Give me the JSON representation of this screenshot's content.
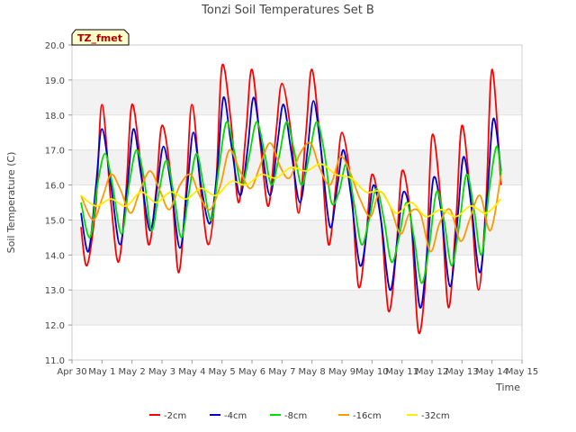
{
  "chart_data": {
    "type": "line",
    "title": "Tonzi Soil Temperatures Set B",
    "xlabel": "Time",
    "ylabel": "Soil Temperature (C)",
    "ylim": [
      11.0,
      20.0
    ],
    "xlim": [
      0,
      15
    ],
    "x_tick_labels": [
      "Apr 30",
      "May 1",
      "May 2",
      "May 3",
      "May 4",
      "May 5",
      "May 6",
      "May 7",
      "May 8",
      "May 9",
      "May 10",
      "May 11",
      "May 12",
      "May 13",
      "May 14",
      "May 15"
    ],
    "y_tick_labels": [
      "11.0",
      "12.0",
      "13.0",
      "14.0",
      "15.0",
      "16.0",
      "17.0",
      "18.0",
      "19.0",
      "20.0"
    ],
    "annotation": "TZ_fmet",
    "grid": "horizontal bands",
    "legend_position": "bottom",
    "x_unit": "days since Apr 30",
    "series": [
      {
        "name": "-2cm",
        "color": "#ff0000",
        "x": [
          0.3,
          0.5,
          0.8,
          1.0,
          1.3,
          1.55,
          1.8,
          2.0,
          2.3,
          2.55,
          2.8,
          3.0,
          3.3,
          3.55,
          3.8,
          4.0,
          4.3,
          4.55,
          4.8,
          5.0,
          5.3,
          5.55,
          5.8,
          6.0,
          6.3,
          6.55,
          6.8,
          7.0,
          7.3,
          7.55,
          7.8,
          8.0,
          8.3,
          8.55,
          8.8,
          9.0,
          9.3,
          9.55,
          9.8,
          10.0,
          10.3,
          10.55,
          10.8,
          11.0,
          11.3,
          11.55,
          11.8,
          12.0,
          12.3,
          12.55,
          12.8,
          13.0,
          13.3,
          13.55,
          13.8,
          14.0,
          14.3
        ],
        "y": [
          14.8,
          13.7,
          15.5,
          18.3,
          15.5,
          13.8,
          15.8,
          18.3,
          16.5,
          14.3,
          15.8,
          17.7,
          16.2,
          13.5,
          15.8,
          18.3,
          15.8,
          14.3,
          16.0,
          19.4,
          17.8,
          15.5,
          17.5,
          19.3,
          17.0,
          15.4,
          17.5,
          18.9,
          17.5,
          15.2,
          17.5,
          19.3,
          17.0,
          14.3,
          16.0,
          17.5,
          16.0,
          13.1,
          14.5,
          16.3,
          15.0,
          12.4,
          14.0,
          16.4,
          15.0,
          11.8,
          13.5,
          17.4,
          15.5,
          12.5,
          15.0,
          17.7,
          15.5,
          13.0,
          15.5,
          19.3,
          16.0
        ]
      },
      {
        "name": "-4cm",
        "color": "#0000cc",
        "x": [
          0.3,
          0.55,
          0.8,
          1.0,
          1.3,
          1.6,
          1.85,
          2.05,
          2.3,
          2.6,
          2.85,
          3.05,
          3.3,
          3.6,
          3.85,
          4.05,
          4.3,
          4.6,
          4.85,
          5.05,
          5.3,
          5.6,
          5.85,
          6.05,
          6.3,
          6.6,
          6.85,
          7.05,
          7.3,
          7.6,
          7.85,
          8.05,
          8.3,
          8.6,
          8.85,
          9.05,
          9.3,
          9.6,
          9.85,
          10.05,
          10.3,
          10.6,
          10.85,
          11.05,
          11.3,
          11.6,
          11.85,
          12.05,
          12.3,
          12.6,
          12.85,
          13.05,
          13.3,
          13.6,
          13.85,
          14.05,
          14.3
        ],
        "y": [
          15.2,
          14.1,
          16.0,
          17.6,
          16.0,
          14.3,
          16.0,
          17.6,
          16.3,
          14.7,
          16.0,
          17.1,
          16.0,
          14.2,
          16.0,
          17.5,
          16.0,
          14.9,
          16.5,
          18.5,
          17.2,
          15.7,
          17.0,
          18.5,
          17.2,
          15.7,
          17.2,
          18.3,
          17.0,
          15.5,
          17.0,
          18.4,
          17.0,
          14.8,
          16.0,
          17.0,
          15.7,
          13.7,
          14.8,
          16.0,
          15.0,
          13.0,
          14.5,
          15.8,
          15.0,
          12.5,
          14.2,
          16.2,
          15.3,
          13.1,
          15.0,
          16.8,
          15.5,
          13.5,
          15.8,
          17.9,
          16.4
        ]
      },
      {
        "name": "-8cm",
        "color": "#00dd00",
        "x": [
          0.3,
          0.6,
          0.85,
          1.1,
          1.35,
          1.65,
          1.9,
          2.15,
          2.4,
          2.65,
          2.9,
          3.15,
          3.4,
          3.65,
          3.9,
          4.15,
          4.4,
          4.65,
          4.9,
          5.15,
          5.4,
          5.65,
          5.9,
          6.15,
          6.4,
          6.65,
          6.9,
          7.15,
          7.4,
          7.65,
          7.9,
          8.15,
          8.4,
          8.65,
          8.9,
          9.15,
          9.4,
          9.65,
          9.9,
          10.15,
          10.4,
          10.65,
          10.9,
          11.15,
          11.4,
          11.65,
          11.9,
          12.15,
          12.4,
          12.65,
          12.9,
          13.15,
          13.4,
          13.65,
          13.9,
          14.15,
          14.3
        ],
        "y": [
          15.5,
          14.5,
          16.0,
          16.9,
          16.0,
          14.6,
          16.0,
          17.0,
          16.2,
          14.7,
          15.8,
          16.7,
          15.7,
          14.5,
          15.8,
          16.9,
          15.9,
          15.0,
          16.5,
          17.8,
          17.0,
          16.0,
          16.8,
          17.8,
          17.0,
          16.0,
          16.8,
          17.8,
          17.0,
          16.0,
          16.8,
          17.8,
          17.0,
          15.5,
          15.8,
          16.6,
          15.5,
          14.3,
          15.0,
          15.9,
          15.0,
          13.8,
          14.5,
          15.5,
          14.5,
          13.2,
          14.2,
          15.8,
          15.0,
          13.7,
          14.8,
          16.3,
          15.3,
          14.0,
          15.8,
          17.1,
          16.3
        ]
      },
      {
        "name": "-16cm",
        "color": "#ff9900",
        "x": [
          0.3,
          0.7,
          1.0,
          1.3,
          1.6,
          1.95,
          2.25,
          2.6,
          2.95,
          3.25,
          3.6,
          3.95,
          4.25,
          4.6,
          4.95,
          5.25,
          5.6,
          5.95,
          6.25,
          6.6,
          6.95,
          7.25,
          7.6,
          7.95,
          8.25,
          8.6,
          8.95,
          9.25,
          9.6,
          9.95,
          10.25,
          10.6,
          10.95,
          11.25,
          11.6,
          11.95,
          12.25,
          12.6,
          12.95,
          13.25,
          13.6,
          13.95,
          14.3
        ],
        "y": [
          15.7,
          15.0,
          15.6,
          16.3,
          15.9,
          15.2,
          15.8,
          16.4,
          15.8,
          15.3,
          16.0,
          16.3,
          15.7,
          15.3,
          16.0,
          17.0,
          16.4,
          15.9,
          16.5,
          17.2,
          16.5,
          16.2,
          16.9,
          17.2,
          16.5,
          16.0,
          16.8,
          16.4,
          15.6,
          15.1,
          15.8,
          15.4,
          14.6,
          15.2,
          15.2,
          14.1,
          14.9,
          15.3,
          14.4,
          15.0,
          15.7,
          14.7,
          16.3
        ]
      },
      {
        "name": "-32cm",
        "color": "#ffee00",
        "x": [
          0.3,
          0.8,
          1.3,
          1.8,
          2.3,
          2.8,
          3.3,
          3.8,
          4.3,
          4.8,
          5.3,
          5.8,
          6.3,
          6.8,
          7.3,
          7.8,
          8.3,
          8.8,
          9.3,
          9.8,
          10.3,
          10.8,
          11.3,
          11.8,
          12.3,
          12.8,
          13.3,
          13.8,
          14.3
        ],
        "y": [
          15.7,
          15.4,
          15.6,
          15.4,
          15.8,
          15.5,
          15.8,
          15.6,
          15.9,
          15.7,
          16.1,
          16.0,
          16.3,
          16.2,
          16.5,
          16.4,
          16.6,
          16.3,
          16.2,
          15.8,
          15.8,
          15.2,
          15.5,
          15.1,
          15.3,
          15.1,
          15.4,
          15.2,
          15.6
        ]
      }
    ]
  }
}
